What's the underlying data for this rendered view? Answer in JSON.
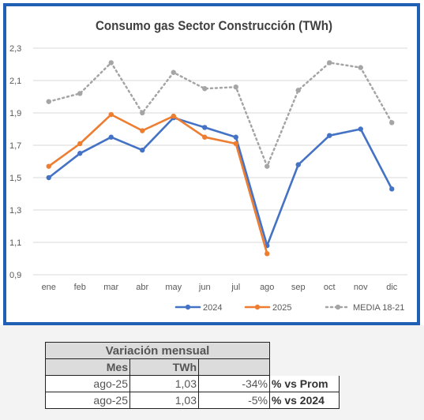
{
  "chart_data": {
    "type": "line",
    "title": "Consumo gas Sector Construcción (TWh)",
    "categories": [
      "ene",
      "feb",
      "mar",
      "abr",
      "may",
      "jun",
      "jul",
      "ago",
      "sep",
      "oct",
      "nov",
      "dic"
    ],
    "ylim": [
      0.9,
      2.3
    ],
    "yticks": [
      "0,9",
      "1,1",
      "1,3",
      "1,5",
      "1,7",
      "1,9",
      "2,1",
      "2,3"
    ],
    "ytick_values": [
      0.9,
      1.1,
      1.3,
      1.5,
      1.7,
      1.9,
      2.1,
      2.3
    ],
    "grid": true,
    "legend_position": "bottom",
    "series": [
      {
        "name": "2024",
        "color": "#4472c4",
        "style": "solid",
        "values": [
          1.5,
          1.65,
          1.75,
          1.67,
          1.87,
          1.81,
          1.75,
          1.08,
          1.58,
          1.76,
          1.8,
          1.43
        ]
      },
      {
        "name": "2025",
        "color": "#ed7d31",
        "style": "solid",
        "values": [
          1.57,
          1.71,
          1.89,
          1.79,
          1.88,
          1.75,
          1.71,
          1.03,
          null,
          null,
          null,
          null
        ]
      },
      {
        "name": "MEDIA 18-21",
        "color": "#a5a5a5",
        "style": "dotted",
        "values": [
          1.97,
          2.02,
          2.21,
          1.9,
          2.15,
          2.05,
          2.06,
          1.57,
          2.04,
          2.21,
          2.18,
          1.84
        ]
      }
    ]
  },
  "table": {
    "title": "Variación mensual",
    "col_mes": "Mes",
    "col_twh": "TWh",
    "rows": [
      {
        "mes": "ago-25",
        "twh": "1,03",
        "pct": "-34%",
        "label": "% vs Prom"
      },
      {
        "mes": "ago-25",
        "twh": "1,03",
        "pct": "-5%",
        "label": "% vs 2024"
      }
    ]
  }
}
